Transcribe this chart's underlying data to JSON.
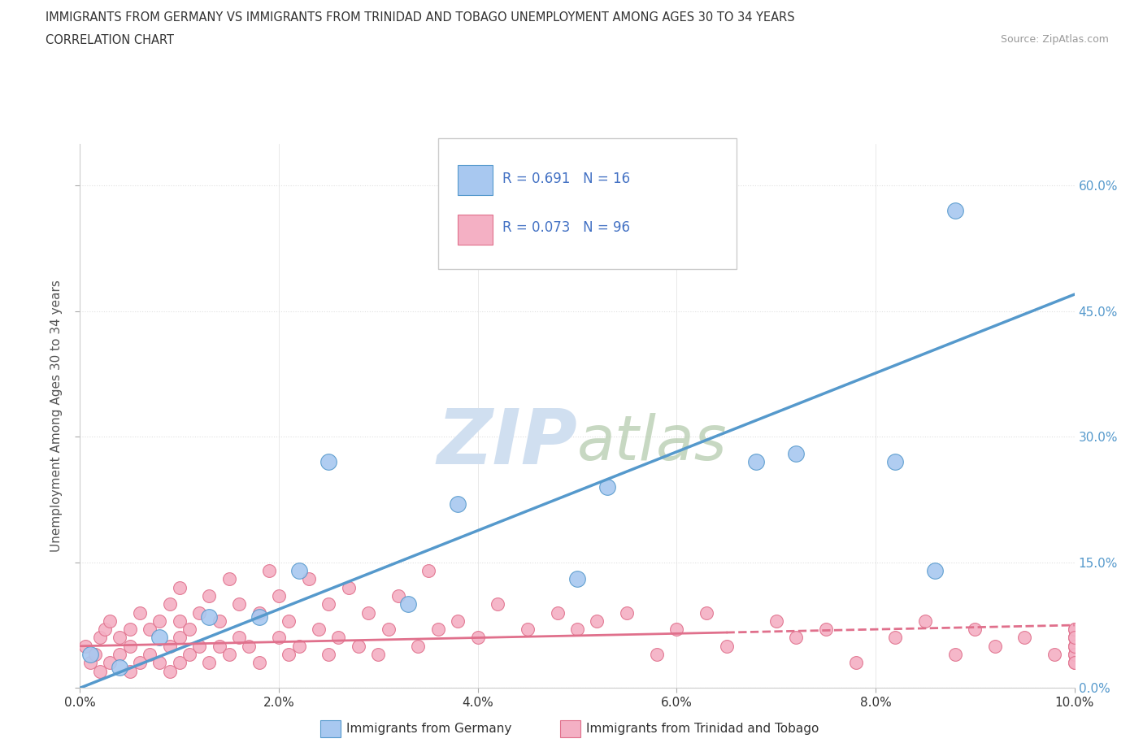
{
  "title_line1": "IMMIGRANTS FROM GERMANY VS IMMIGRANTS FROM TRINIDAD AND TOBAGO UNEMPLOYMENT AMONG AGES 30 TO 34 YEARS",
  "title_line2": "CORRELATION CHART",
  "source_text": "Source: ZipAtlas.com",
  "ylabel": "Unemployment Among Ages 30 to 34 years",
  "xlim": [
    0,
    0.1
  ],
  "ylim": [
    0,
    0.65
  ],
  "xticks": [
    0.0,
    0.02,
    0.04,
    0.06,
    0.08,
    0.1
  ],
  "yticks": [
    0.0,
    0.15,
    0.3,
    0.45,
    0.6
  ],
  "xticklabels": [
    "0.0%",
    "2.0%",
    "4.0%",
    "6.0%",
    "8.0%",
    "10.0%"
  ],
  "yticklabels_right": [
    "60.0%",
    "45.0%",
    "30.0%",
    "15.0%",
    "0.0%"
  ],
  "germany_color": "#a8c8f0",
  "germany_edge_color": "#5599cc",
  "tt_color": "#f4b0c4",
  "tt_edge_color": "#e0708c",
  "germany_R": 0.691,
  "germany_N": 16,
  "tt_R": 0.073,
  "tt_N": 96,
  "legend_R_color": "#4472c4",
  "watermark_color": "#d0dff0",
  "bg_color": "#ffffff",
  "grid_color": "#e0e0e0",
  "germany_x": [
    0.001,
    0.004,
    0.008,
    0.013,
    0.018,
    0.022,
    0.025,
    0.033,
    0.038,
    0.05,
    0.053,
    0.068,
    0.072,
    0.082,
    0.086,
    0.088
  ],
  "germany_y": [
    0.04,
    0.025,
    0.06,
    0.085,
    0.085,
    0.14,
    0.27,
    0.1,
    0.22,
    0.13,
    0.24,
    0.27,
    0.28,
    0.27,
    0.14,
    0.57
  ],
  "tt_x": [
    0.0005,
    0.001,
    0.0015,
    0.002,
    0.002,
    0.0025,
    0.003,
    0.003,
    0.004,
    0.004,
    0.005,
    0.005,
    0.005,
    0.006,
    0.006,
    0.007,
    0.007,
    0.008,
    0.008,
    0.009,
    0.009,
    0.009,
    0.01,
    0.01,
    0.01,
    0.01,
    0.011,
    0.011,
    0.012,
    0.012,
    0.013,
    0.013,
    0.014,
    0.014,
    0.015,
    0.015,
    0.016,
    0.016,
    0.017,
    0.018,
    0.018,
    0.019,
    0.02,
    0.02,
    0.021,
    0.021,
    0.022,
    0.023,
    0.024,
    0.025,
    0.025,
    0.026,
    0.027,
    0.028,
    0.029,
    0.03,
    0.031,
    0.032,
    0.034,
    0.035,
    0.036,
    0.038,
    0.04,
    0.042,
    0.045,
    0.048,
    0.05,
    0.052,
    0.055,
    0.058,
    0.06,
    0.063,
    0.065,
    0.07,
    0.072,
    0.075,
    0.078,
    0.082,
    0.085,
    0.088,
    0.09,
    0.092,
    0.095,
    0.098,
    0.1,
    0.1,
    0.1,
    0.1,
    0.1,
    0.1,
    0.1,
    0.1,
    0.1,
    0.1,
    0.1,
    0.1
  ],
  "tt_y": [
    0.05,
    0.03,
    0.04,
    0.02,
    0.06,
    0.07,
    0.03,
    0.08,
    0.04,
    0.06,
    0.02,
    0.05,
    0.07,
    0.03,
    0.09,
    0.04,
    0.07,
    0.03,
    0.08,
    0.02,
    0.05,
    0.1,
    0.03,
    0.06,
    0.08,
    0.12,
    0.04,
    0.07,
    0.05,
    0.09,
    0.03,
    0.11,
    0.05,
    0.08,
    0.04,
    0.13,
    0.06,
    0.1,
    0.05,
    0.03,
    0.09,
    0.14,
    0.06,
    0.11,
    0.04,
    0.08,
    0.05,
    0.13,
    0.07,
    0.04,
    0.1,
    0.06,
    0.12,
    0.05,
    0.09,
    0.04,
    0.07,
    0.11,
    0.05,
    0.14,
    0.07,
    0.08,
    0.06,
    0.1,
    0.07,
    0.09,
    0.07,
    0.08,
    0.09,
    0.04,
    0.07,
    0.09,
    0.05,
    0.08,
    0.06,
    0.07,
    0.03,
    0.06,
    0.08,
    0.04,
    0.07,
    0.05,
    0.06,
    0.04,
    0.05,
    0.06,
    0.04,
    0.07,
    0.03,
    0.05,
    0.06,
    0.04,
    0.07,
    0.03,
    0.05,
    0.06
  ],
  "ger_trend_x0": 0.0,
  "ger_trend_y0": 0.0,
  "ger_trend_x1": 0.1,
  "ger_trend_y1": 0.47,
  "tt_trend_x0": 0.0,
  "tt_trend_y0": 0.05,
  "tt_trend_x1": 0.1,
  "tt_trend_y1": 0.075
}
